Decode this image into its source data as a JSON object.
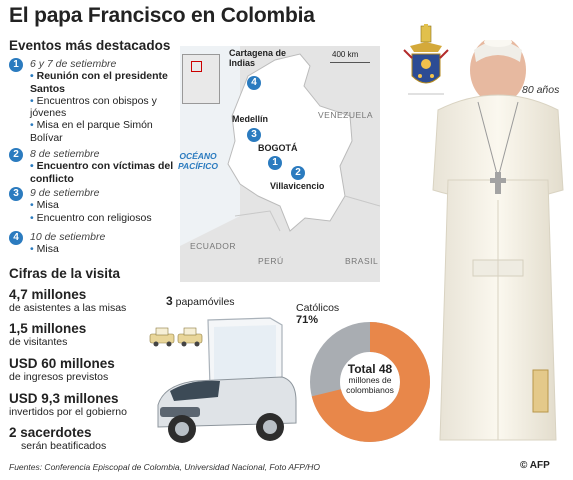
{
  "title": "El papa Francisco en Colombia",
  "events": {
    "heading": "Eventos más destacados",
    "items": [
      {
        "number": "1",
        "date": "6 y 7 de setiembre",
        "lines": [
          {
            "text": "Reunión con el presidente Santos",
            "bold": true
          },
          {
            "text": "Encuentros con obispos y jóvenes",
            "bold": false
          },
          {
            "text": "Misa en el parque Simón Bolívar",
            "bold": false
          }
        ]
      },
      {
        "number": "2",
        "date": "8 de setiembre",
        "lines": [
          {
            "text": "Encuentro con víctimas del conflicto",
            "bold": true
          }
        ]
      },
      {
        "number": "3",
        "date": "9 de setiembre",
        "lines": [
          {
            "text": "Misa",
            "bold": false
          },
          {
            "text": "Encuentro con religiosos",
            "bold": false
          }
        ]
      },
      {
        "number": "4",
        "date": "10 de setiembre",
        "lines": [
          {
            "text": "Misa",
            "bold": false
          }
        ]
      }
    ]
  },
  "map": {
    "scale": "400 km",
    "ocean": "OCÉANO PACÍFICO",
    "countries": {
      "venezuela": "VENEZUELA",
      "ecuador": "ECUADOR",
      "peru": "PERÚ",
      "brasil": "BRASIL"
    },
    "cities": {
      "cartagena": {
        "name": "Cartagena de Indias",
        "marker": "4"
      },
      "medellin": {
        "name": "Medellín",
        "marker": "3"
      },
      "bogota": {
        "name": "BOGOTÁ",
        "marker": "1"
      },
      "villavicencio": {
        "name": "Villavicencio",
        "marker": "2"
      }
    }
  },
  "pope_age": "80 años",
  "stats": {
    "heading": "Cifras de la visita",
    "items": [
      {
        "big": "4,7 millones",
        "small": "de asistentes a las misas"
      },
      {
        "big": "1,5 millones",
        "small": "de visitantes"
      },
      {
        "big": "USD 60 millones",
        "small": "de ingresos previstos"
      },
      {
        "big": "USD 9,3 millones",
        "small": "invertidos por el gobierno"
      },
      {
        "big": "2 sacerdotes",
        "small": "serán beatificados"
      }
    ]
  },
  "popemobiles": {
    "count": "3",
    "label": "papamóviles"
  },
  "donut": {
    "catholic_label": "Católicos",
    "catholic_percent": "71%",
    "catholic_fraction": 0.71,
    "total_label": "Total 48",
    "total_sub": "millones de colombianos",
    "colors": {
      "catholic": "#e8874a",
      "other": "#a9adb2"
    }
  },
  "footer": "Fuentes: Conferencia Episcopal de Colombia, Universidad Nacional, Foto AFP/HO",
  "credit": "© AFP",
  "colors": {
    "accent": "#2b7bbf"
  }
}
